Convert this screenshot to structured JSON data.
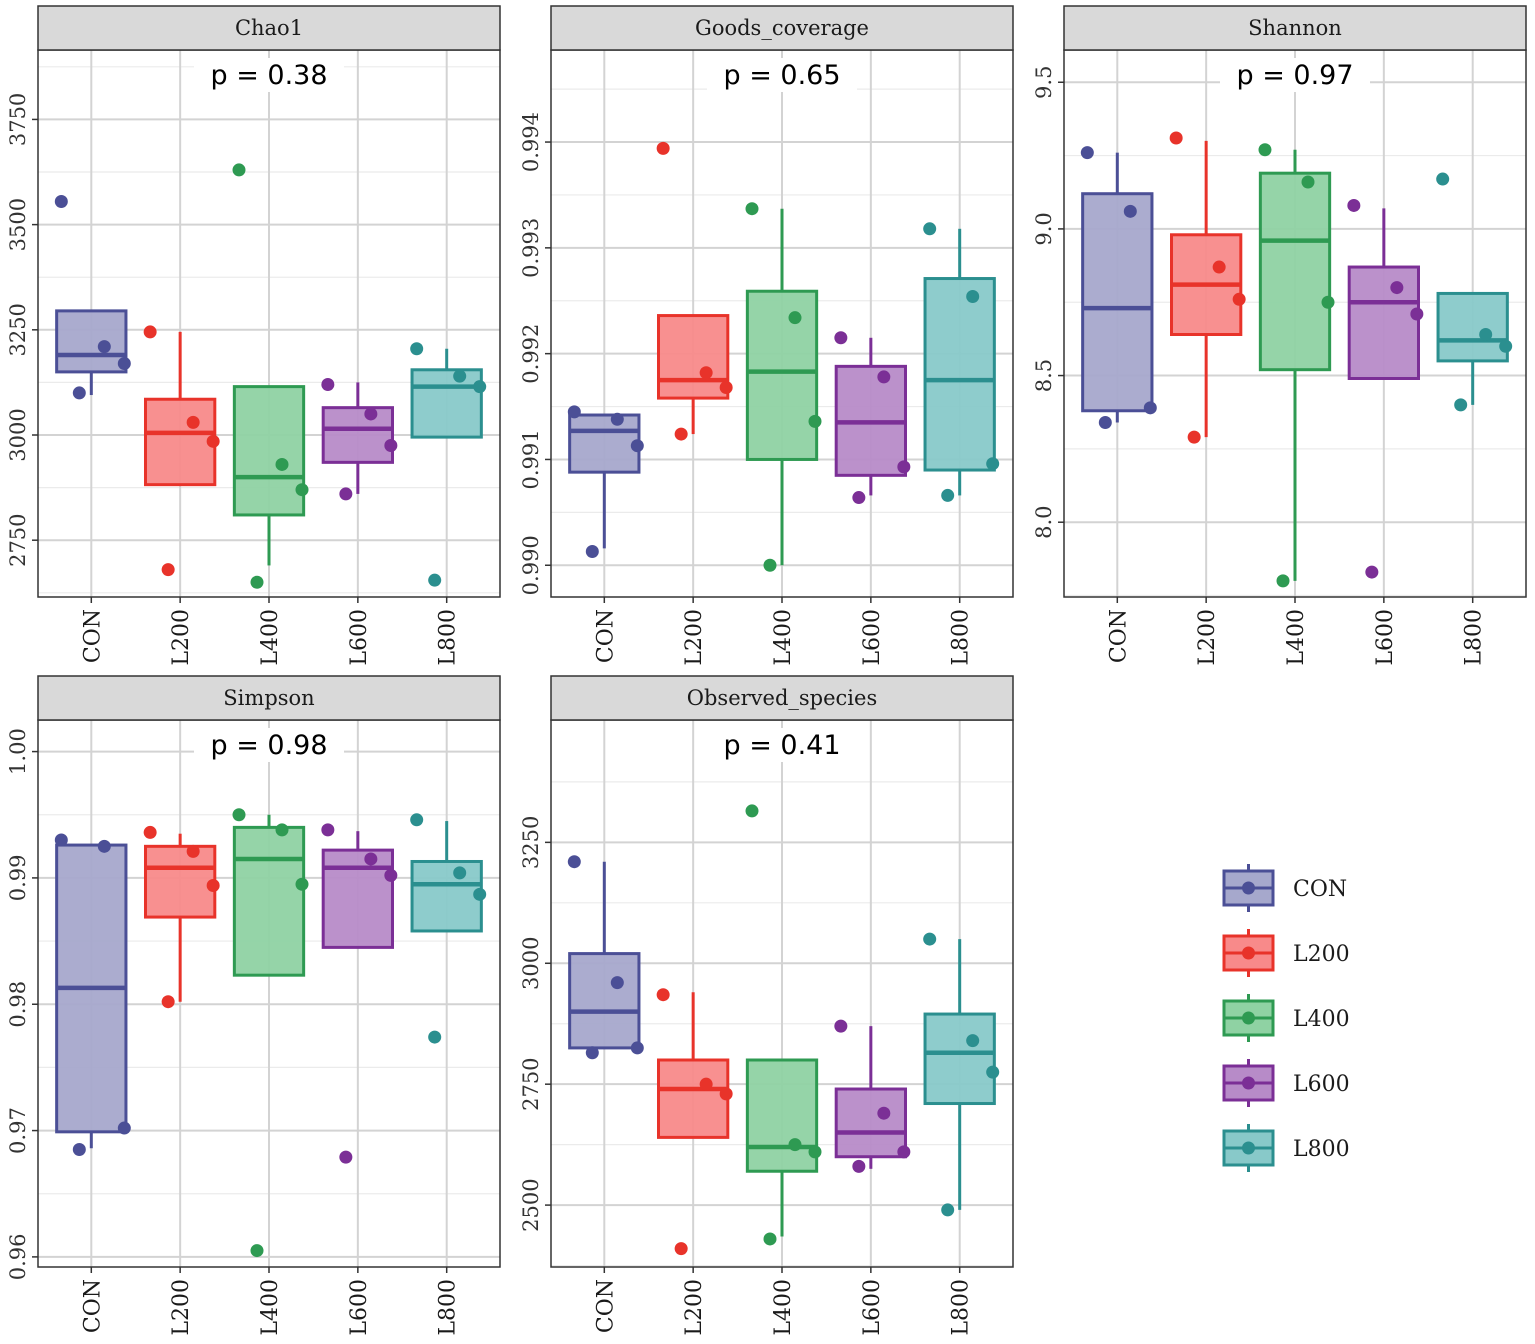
{
  "chart_data": {
    "type": "box",
    "groups": [
      "CON",
      "L200",
      "L400",
      "L600",
      "L800"
    ],
    "colors": {
      "CON": "#4b4f96",
      "L200": "#e8332a",
      "L400": "#2e9a52",
      "L600": "#7b2f96",
      "L800": "#2b8f8f"
    },
    "fills": {
      "CON": "#a6a8cc",
      "L200": "#f88a8a",
      "L400": "#8fd2a3",
      "L600": "#b78bc8",
      "L800": "#88c9c9"
    },
    "legend": {
      "items": [
        "CON",
        "L200",
        "L400",
        "L600",
        "L800"
      ],
      "position": "right"
    },
    "panels": [
      {
        "title": "Chao1",
        "p_label": "p = 0.38",
        "ylim": [
          2615,
          3915
        ],
        "yticks": [
          2750,
          3000,
          3250,
          3500,
          3750
        ],
        "ytick_labels": [
          "2750",
          "3000",
          "3250",
          "3500",
          "3750"
        ],
        "boxes": [
          {
            "group": "CON",
            "low": 3095,
            "q1": 3150,
            "median": 3190,
            "q3": 3295,
            "high": 3295
          },
          {
            "group": "L200",
            "low": 2882,
            "q1": 2882,
            "median": 3005,
            "q3": 3085,
            "high": 3245
          },
          {
            "group": "L400",
            "low": 2690,
            "q1": 2810,
            "median": 2900,
            "q3": 3115,
            "high": 3115
          },
          {
            "group": "L600",
            "low": 2860,
            "q1": 2935,
            "median": 3015,
            "q3": 3065,
            "high": 3125
          },
          {
            "group": "L800",
            "low": 2995,
            "q1": 2995,
            "median": 3115,
            "q3": 3155,
            "high": 3205
          }
        ],
        "points": [
          {
            "group": "CON",
            "values": [
              3555,
              3210,
              3170,
              3100
            ]
          },
          {
            "group": "L200",
            "values": [
              3245,
              3030,
              2985,
              2680
            ]
          },
          {
            "group": "L400",
            "values": [
              3630,
              2930,
              2870,
              2650
            ]
          },
          {
            "group": "L600",
            "values": [
              3120,
              3050,
              2975,
              2860
            ]
          },
          {
            "group": "L800",
            "values": [
              3205,
              3140,
              3115,
              2655
            ]
          }
        ]
      },
      {
        "title": "Goods_coverage",
        "p_label": "p = 0.65",
        "ylim": [
          0.9897,
          0.99487
        ],
        "yticks": [
          0.99,
          0.991,
          0.992,
          0.993,
          0.994
        ],
        "ytick_labels": [
          "0.990",
          "0.991",
          "0.992",
          "0.993",
          "0.994"
        ],
        "boxes": [
          {
            "group": "CON",
            "low": 0.99016,
            "q1": 0.99088,
            "median": 0.99127,
            "q3": 0.99142,
            "high": 0.99142
          },
          {
            "group": "L200",
            "low": 0.99124,
            "q1": 0.99158,
            "median": 0.99175,
            "q3": 0.99236,
            "high": 0.99236
          },
          {
            "group": "L400",
            "low": 0.99,
            "q1": 0.991,
            "median": 0.99183,
            "q3": 0.99259,
            "high": 0.99337
          },
          {
            "group": "L600",
            "low": 0.99066,
            "q1": 0.99085,
            "median": 0.99135,
            "q3": 0.99188,
            "high": 0.99215
          },
          {
            "group": "L800",
            "low": 0.99066,
            "q1": 0.9909,
            "median": 0.99175,
            "q3": 0.99271,
            "high": 0.99318
          }
        ],
        "points": [
          {
            "group": "CON",
            "values": [
              0.99145,
              0.99138,
              0.99113,
              0.99013
            ]
          },
          {
            "group": "L200",
            "values": [
              0.99394,
              0.99182,
              0.99168,
              0.99124
            ]
          },
          {
            "group": "L400",
            "values": [
              0.99337,
              0.99234,
              0.99136,
              0.99
            ]
          },
          {
            "group": "L600",
            "values": [
              0.99215,
              0.99178,
              0.99093,
              0.99064
            ]
          },
          {
            "group": "L800",
            "values": [
              0.99318,
              0.99254,
              0.99096,
              0.99066
            ]
          }
        ]
      },
      {
        "title": "Shannon",
        "p_label": "p = 0.97",
        "ylim": [
          7.745,
          9.61
        ],
        "yticks": [
          8.0,
          8.5,
          9.0,
          9.5
        ],
        "ytick_labels": [
          "8.0",
          "8.5",
          "9.0",
          "9.5"
        ],
        "boxes": [
          {
            "group": "CON",
            "low": 8.34,
            "q1": 8.38,
            "median": 8.73,
            "q3": 9.12,
            "high": 9.26
          },
          {
            "group": "L200",
            "low": 8.29,
            "q1": 8.64,
            "median": 8.81,
            "q3": 8.98,
            "high": 9.3
          },
          {
            "group": "L400",
            "low": 7.8,
            "q1": 8.52,
            "median": 8.96,
            "q3": 9.19,
            "high": 9.27
          },
          {
            "group": "L600",
            "low": 8.49,
            "q1": 8.49,
            "median": 8.75,
            "q3": 8.87,
            "high": 9.07
          },
          {
            "group": "L800",
            "low": 8.4,
            "q1": 8.55,
            "median": 8.62,
            "q3": 8.78,
            "high": 8.78
          }
        ],
        "points": [
          {
            "group": "CON",
            "values": [
              9.26,
              9.06,
              8.39,
              8.34
            ]
          },
          {
            "group": "L200",
            "values": [
              9.31,
              8.87,
              8.76,
              8.29
            ]
          },
          {
            "group": "L400",
            "values": [
              9.27,
              9.16,
              8.75,
              7.8
            ]
          },
          {
            "group": "L600",
            "values": [
              9.08,
              8.8,
              8.71,
              7.83
            ]
          },
          {
            "group": "L800",
            "values": [
              9.17,
              8.64,
              8.6,
              8.4
            ]
          }
        ]
      },
      {
        "title": "Simpson",
        "p_label": "p = 0.98",
        "ylim": [
          0.9592,
          1.0025
        ],
        "yticks": [
          0.96,
          0.97,
          0.98,
          0.99,
          1.0
        ],
        "ytick_labels": [
          "0.96",
          "0.97",
          "0.98",
          "0.99",
          "1.00"
        ],
        "boxes": [
          {
            "group": "CON",
            "low": 0.9686,
            "q1": 0.9699,
            "median": 0.9813,
            "q3": 0.9926,
            "high": 0.9926
          },
          {
            "group": "L200",
            "low": 0.9802,
            "q1": 0.9869,
            "median": 0.9908,
            "q3": 0.9925,
            "high": 0.9935
          },
          {
            "group": "L400",
            "low": 0.9823,
            "q1": 0.9823,
            "median": 0.9915,
            "q3": 0.994,
            "high": 0.995
          },
          {
            "group": "L600",
            "low": 0.9845,
            "q1": 0.9845,
            "median": 0.9908,
            "q3": 0.9922,
            "high": 0.9937
          },
          {
            "group": "L800",
            "low": 0.9858,
            "q1": 0.9858,
            "median": 0.9895,
            "q3": 0.9913,
            "high": 0.9945
          }
        ],
        "points": [
          {
            "group": "CON",
            "values": [
              0.993,
              0.9925,
              0.9702,
              0.9685
            ]
          },
          {
            "group": "L200",
            "values": [
              0.9936,
              0.9921,
              0.9894,
              0.9802
            ]
          },
          {
            "group": "L400",
            "values": [
              0.995,
              0.9938,
              0.9895,
              0.9605
            ]
          },
          {
            "group": "L600",
            "values": [
              0.9938,
              0.9915,
              0.9902,
              0.9679
            ]
          },
          {
            "group": "L800",
            "values": [
              0.9946,
              0.9904,
              0.9887,
              0.9774
            ]
          }
        ]
      },
      {
        "title": "Observed_species",
        "p_label": "p = 0.41",
        "ylim": [
          2372,
          3503
        ],
        "yticks": [
          2500,
          2750,
          3000,
          3250
        ],
        "ytick_labels": [
          "2500",
          "2750",
          "3000",
          "3250"
        ],
        "boxes": [
          {
            "group": "CON",
            "low": 2825,
            "q1": 2825,
            "median": 2900,
            "q3": 3020,
            "high": 3210
          },
          {
            "group": "L200",
            "low": 2640,
            "q1": 2640,
            "median": 2740,
            "q3": 2800,
            "high": 2940
          },
          {
            "group": "L400",
            "low": 2435,
            "q1": 2570,
            "median": 2620,
            "q3": 2800,
            "high": 2800
          },
          {
            "group": "L600",
            "low": 2575,
            "q1": 2600,
            "median": 2650,
            "q3": 2740,
            "high": 2870
          },
          {
            "group": "L800",
            "low": 2490,
            "q1": 2710,
            "median": 2815,
            "q3": 2895,
            "high": 3050
          }
        ],
        "points": [
          {
            "group": "CON",
            "values": [
              3210,
              2960,
              2825,
              2815
            ]
          },
          {
            "group": "L200",
            "values": [
              2935,
              2750,
              2730,
              2410
            ]
          },
          {
            "group": "L400",
            "values": [
              3315,
              2625,
              2610,
              2430
            ]
          },
          {
            "group": "L600",
            "values": [
              2870,
              2690,
              2610,
              2580
            ]
          },
          {
            "group": "L800",
            "values": [
              3050,
              2840,
              2775,
              2490
            ]
          }
        ]
      }
    ]
  }
}
